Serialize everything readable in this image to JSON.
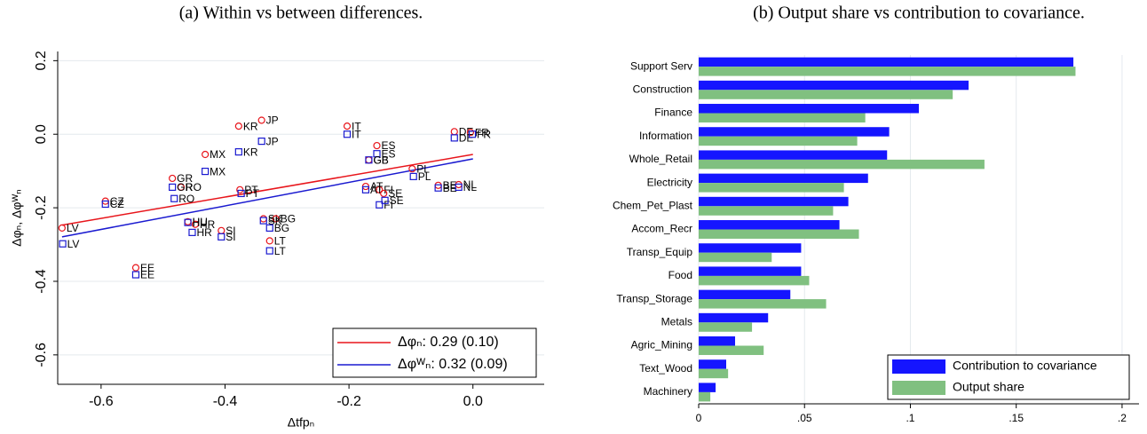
{
  "chart_data": [
    {
      "type": "scatter",
      "title": "(a) Within vs between differences.",
      "x_label": "Δtfpₙ",
      "y_label": "Δφₙ, Δφᵂₙ",
      "xlim": [
        -0.67,
        0.115
      ],
      "ylim": [
        -0.68,
        0.225
      ],
      "xticks": [
        -0.6,
        -0.4,
        -0.2,
        {
          "value": 0,
          "label": "0.0"
        }
      ],
      "yticks": [
        0.2,
        {
          "value": 0,
          "label": "0.0"
        },
        -0.2,
        -0.4,
        -0.6
      ],
      "grid": true,
      "legend": "bottom-right",
      "point_labels": [
        "LV",
        "CZ",
        "EE",
        "GR",
        "RO",
        "HU",
        "HR",
        "SI",
        "MX",
        "PT",
        "KR",
        "JP",
        "SK",
        "BG",
        "LT",
        "IT",
        "ES",
        "GB",
        "AT",
        "FI",
        "SE",
        "PL",
        "BE",
        "NL",
        "DE",
        "FR"
      ],
      "series": [
        {
          "color": "#e8151b",
          "marker": "circle",
          "x": [
            -0.663,
            -0.593,
            -0.544,
            -0.485,
            -0.471,
            -0.46,
            -0.448,
            -0.406,
            -0.432,
            -0.376,
            -0.378,
            -0.341,
            -0.338,
            -0.318,
            -0.328,
            -0.203,
            -0.155,
            -0.168,
            -0.173,
            -0.151,
            -0.144,
            -0.098,
            -0.056,
            -0.023,
            -0.03,
            -0.004
          ],
          "values": [
            -0.255,
            -0.182,
            -0.363,
            -0.12,
            -0.144,
            -0.238,
            -0.245,
            -0.262,
            -0.055,
            -0.151,
            0.022,
            0.038,
            -0.23,
            -0.23,
            -0.29,
            0.022,
            -0.031,
            -0.07,
            -0.142,
            -0.151,
            -0.161,
            -0.094,
            -0.139,
            -0.137,
            0.007,
            0.005
          ]
        },
        {
          "color": "#1a1ad0",
          "marker": "square",
          "x": [
            -0.662,
            -0.593,
            -0.544,
            -0.485,
            -0.482,
            -0.46,
            -0.453,
            -0.406,
            -0.432,
            -0.374,
            -0.378,
            -0.341,
            -0.338,
            -0.328,
            -0.328,
            -0.203,
            -0.155,
            -0.168,
            -0.173,
            -0.151,
            -0.142,
            -0.096,
            -0.056,
            -0.023,
            -0.03,
            -0.001
          ],
          "values": [
            -0.298,
            -0.19,
            -0.382,
            -0.144,
            -0.175,
            -0.24,
            -0.267,
            -0.279,
            -0.101,
            -0.161,
            -0.048,
            -0.019,
            -0.235,
            -0.255,
            -0.317,
            0,
            -0.053,
            -0.07,
            -0.151,
            -0.192,
            -0.18,
            -0.115,
            -0.146,
            -0.144,
            -0.01,
            0
          ]
        }
      ],
      "fit_lines": [
        {
          "name": "Δφₙ: 0.29 (0.10)",
          "color": "#e8151b",
          "x": [
            -0.663,
            0
          ],
          "values": [
            -0.247,
            -0.055
          ]
        },
        {
          "name": "Δφᵂₙ: 0.32 (0.09)",
          "color": "#1a1ad0",
          "x": [
            -0.663,
            0
          ],
          "values": [
            -0.279,
            -0.067
          ]
        }
      ]
    },
    {
      "type": "barh",
      "title": "(b) Output share vs contribution to covariance.",
      "categories": [
        "Support Serv",
        "Construction",
        "Finance",
        "Information",
        "Whole_Retail",
        "Electricity",
        "Chem_Pet_Plast",
        "Accom_Recr",
        "Transp_Equip",
        "Food",
        "Transp_Storage",
        "Metals",
        "Agric_Mining",
        "Text_Wood",
        "Machinery"
      ],
      "series": [
        {
          "name": "Contribution to covariance",
          "color": "#1515ff",
          "values": [
            0.177,
            0.1275,
            0.104,
            0.09,
            0.089,
            0.08,
            0.0707,
            0.0665,
            0.0484,
            0.0484,
            0.0433,
            0.0328,
            0.0172,
            0.013,
            0.008
          ]
        },
        {
          "name": "Output share",
          "color": "#80c080",
          "values": [
            0.178,
            0.12,
            0.0787,
            0.0749,
            0.135,
            0.0686,
            0.0635,
            0.0757,
            0.0345,
            0.0522,
            0.0602,
            0.0252,
            0.0307,
            0.0139,
            0.0055
          ]
        }
      ],
      "xlim": [
        0,
        0.208
      ],
      "xticks": [
        0,
        {
          "value": 0.05,
          "label": ".05"
        },
        {
          "value": 0.1,
          "label": ".1"
        },
        {
          "value": 0.15,
          "label": ".15"
        },
        {
          "value": 0.2,
          "label": ".2"
        }
      ],
      "grid": true,
      "legend": "bottom-right"
    }
  ]
}
